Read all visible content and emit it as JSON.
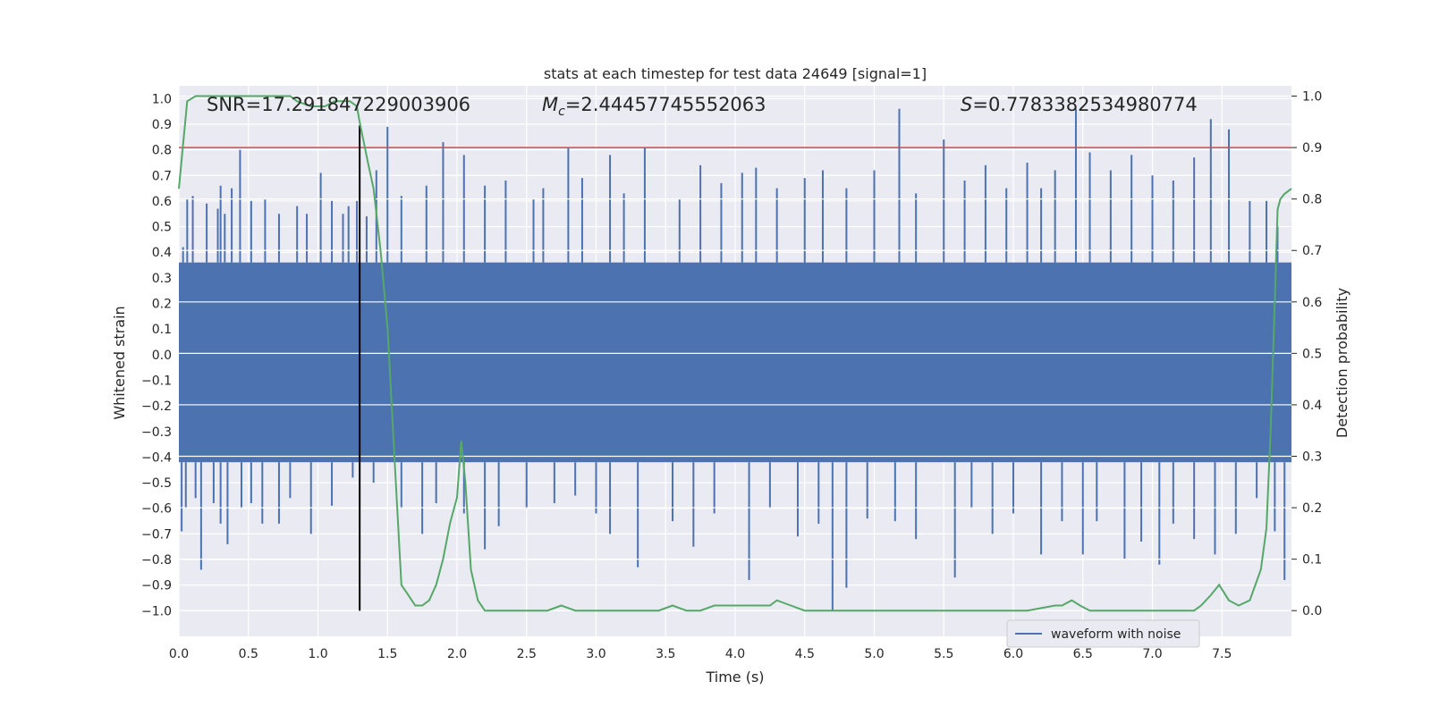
{
  "chart_data": {
    "type": "line",
    "title": "stats at each timestep for test data 24649 [signal=1]",
    "xlabel": "Time (s)",
    "ylabel_left": "Whitened strain",
    "ylabel_right": "Detection probability",
    "xlim": [
      0,
      8
    ],
    "ylim_left": [
      -1.1,
      1.05
    ],
    "ylim_right": [
      -0.05,
      1.02
    ],
    "x_ticks": [
      "0.0",
      "0.5",
      "1.0",
      "1.5",
      "2.0",
      "2.5",
      "3.0",
      "3.5",
      "4.0",
      "4.5",
      "5.0",
      "5.5",
      "6.0",
      "6.5",
      "7.0",
      "7.5"
    ],
    "y_ticks_left": [
      "1.0",
      "0.9",
      "0.8",
      "0.7",
      "0.6",
      "0.5",
      "0.4",
      "0.3",
      "0.2",
      "0.1",
      "0.0",
      "-0.1",
      "-0.2",
      "-0.3",
      "-0.4",
      "-0.5",
      "-0.6",
      "-0.7",
      "-0.8",
      "-0.9",
      "-1.0"
    ],
    "y_ticks_right": [
      "1.0",
      "0.9",
      "0.8",
      "0.7",
      "0.6",
      "0.5",
      "0.4",
      "0.3",
      "0.2",
      "0.1",
      "0.0"
    ],
    "annotations": {
      "snr": "SNR=17.291847229003906",
      "mc_prefix": "M",
      "mc_sub": "c",
      "mc_value": "=2.44457745552063",
      "s_prefix": "S",
      "s_value": "=0.7783382534980774"
    },
    "legend": {
      "label": "waveform with noise",
      "position": "lower-right"
    },
    "colors": {
      "waveform": "#4c72b0",
      "probability": "#55a868",
      "threshold": "#c44e52",
      "marker": "#000000",
      "axes_bg": "#eaeaf2"
    },
    "threshold_probability": 0.9,
    "marker_time": 1.3,
    "waveform_series": {
      "name": "waveform with noise",
      "envelope_top": 0.36,
      "envelope_bottom": -0.42,
      "spikes_positive": [
        [
          0.03,
          0.42
        ],
        [
          0.06,
          0.61
        ],
        [
          0.1,
          0.62
        ],
        [
          0.2,
          0.59
        ],
        [
          0.28,
          0.57
        ],
        [
          0.3,
          0.66
        ],
        [
          0.33,
          0.55
        ],
        [
          0.38,
          0.65
        ],
        [
          0.44,
          0.8
        ],
        [
          0.52,
          0.6
        ],
        [
          0.62,
          0.61
        ],
        [
          0.72,
          0.55
        ],
        [
          0.85,
          0.58
        ],
        [
          0.92,
          0.55
        ],
        [
          1.02,
          0.71
        ],
        [
          1.1,
          0.6
        ],
        [
          1.18,
          0.55
        ],
        [
          1.22,
          0.58
        ],
        [
          1.28,
          0.6
        ],
        [
          1.35,
          0.54
        ],
        [
          1.42,
          0.72
        ],
        [
          1.5,
          0.89
        ],
        [
          1.6,
          0.62
        ],
        [
          1.78,
          0.66
        ],
        [
          1.9,
          0.83
        ],
        [
          2.05,
          0.78
        ],
        [
          2.2,
          0.66
        ],
        [
          2.35,
          0.68
        ],
        [
          2.55,
          0.61
        ],
        [
          2.62,
          0.65
        ],
        [
          2.8,
          0.81
        ],
        [
          2.9,
          0.69
        ],
        [
          3.1,
          0.78
        ],
        [
          3.2,
          0.63
        ],
        [
          3.35,
          0.81
        ],
        [
          3.6,
          0.61
        ],
        [
          3.75,
          0.74
        ],
        [
          3.9,
          0.67
        ],
        [
          4.05,
          0.71
        ],
        [
          4.15,
          0.73
        ],
        [
          4.3,
          0.65
        ],
        [
          4.5,
          0.69
        ],
        [
          4.63,
          0.72
        ],
        [
          4.8,
          0.65
        ],
        [
          5.0,
          0.72
        ],
        [
          5.18,
          0.96
        ],
        [
          5.3,
          0.63
        ],
        [
          5.5,
          0.84
        ],
        [
          5.65,
          0.68
        ],
        [
          5.8,
          0.74
        ],
        [
          5.95,
          0.65
        ],
        [
          6.1,
          0.75
        ],
        [
          6.2,
          0.65
        ],
        [
          6.3,
          0.72
        ],
        [
          6.45,
          0.96
        ],
        [
          6.55,
          0.79
        ],
        [
          6.7,
          0.72
        ],
        [
          6.85,
          0.78
        ],
        [
          7.0,
          0.7
        ],
        [
          7.15,
          0.68
        ],
        [
          7.3,
          0.77
        ],
        [
          7.42,
          0.92
        ],
        [
          7.55,
          0.88
        ],
        [
          7.7,
          0.6
        ],
        [
          7.82,
          0.6
        ],
        [
          7.9,
          0.5
        ]
      ],
      "spikes_negative": [
        [
          0.02,
          -0.69
        ],
        [
          0.05,
          -0.6
        ],
        [
          0.12,
          -0.56
        ],
        [
          0.16,
          -0.84
        ],
        [
          0.25,
          -0.58
        ],
        [
          0.3,
          -0.66
        ],
        [
          0.35,
          -0.74
        ],
        [
          0.45,
          -0.6
        ],
        [
          0.52,
          -0.58
        ],
        [
          0.6,
          -0.66
        ],
        [
          0.72,
          -0.66
        ],
        [
          0.8,
          -0.56
        ],
        [
          0.95,
          -0.7
        ],
        [
          1.1,
          -0.59
        ],
        [
          1.25,
          -0.48
        ],
        [
          1.4,
          -0.5
        ],
        [
          1.6,
          -0.6
        ],
        [
          1.75,
          -0.7
        ],
        [
          1.85,
          -0.58
        ],
        [
          2.05,
          -0.62
        ],
        [
          2.2,
          -0.76
        ],
        [
          2.3,
          -0.67
        ],
        [
          2.5,
          -0.6
        ],
        [
          2.7,
          -0.58
        ],
        [
          2.85,
          -0.55
        ],
        [
          3.0,
          -0.62
        ],
        [
          3.1,
          -0.7
        ],
        [
          3.3,
          -0.83
        ],
        [
          3.55,
          -0.65
        ],
        [
          3.7,
          -0.75
        ],
        [
          3.85,
          -0.62
        ],
        [
          4.1,
          -0.88
        ],
        [
          4.25,
          -0.6
        ],
        [
          4.45,
          -0.71
        ],
        [
          4.6,
          -0.66
        ],
        [
          4.7,
          -1.0
        ],
        [
          4.8,
          -0.91
        ],
        [
          4.95,
          -0.64
        ],
        [
          5.15,
          -0.65
        ],
        [
          5.3,
          -0.72
        ],
        [
          5.58,
          -0.87
        ],
        [
          5.7,
          -0.6
        ],
        [
          5.85,
          -0.7
        ],
        [
          6.0,
          -0.62
        ],
        [
          6.2,
          -0.78
        ],
        [
          6.35,
          -0.65
        ],
        [
          6.5,
          -0.78
        ],
        [
          6.6,
          -0.65
        ],
        [
          6.8,
          -0.8
        ],
        [
          6.92,
          -0.73
        ],
        [
          7.05,
          -0.82
        ],
        [
          7.15,
          -0.66
        ],
        [
          7.3,
          -0.72
        ],
        [
          7.45,
          -0.78
        ],
        [
          7.6,
          -0.7
        ],
        [
          7.75,
          -0.56
        ],
        [
          7.88,
          -0.69
        ],
        [
          7.95,
          -0.88
        ]
      ]
    },
    "probability_series": {
      "name": "detection probability",
      "x": [
        0.0,
        0.06,
        0.12,
        0.2,
        0.3,
        0.5,
        0.6,
        0.7,
        0.8,
        0.85,
        0.95,
        1.05,
        1.12,
        1.18,
        1.23,
        1.28,
        1.3,
        1.33,
        1.36,
        1.4,
        1.45,
        1.5,
        1.55,
        1.6,
        1.65,
        1.7,
        1.75,
        1.8,
        1.85,
        1.9,
        1.95,
        2.0,
        2.03,
        2.06,
        2.1,
        2.15,
        2.2,
        2.25,
        2.35,
        2.5,
        2.65,
        2.75,
        2.85,
        3.0,
        3.15,
        3.3,
        3.45,
        3.55,
        3.65,
        3.75,
        3.85,
        3.95,
        4.05,
        4.15,
        4.25,
        4.3,
        4.4,
        4.5,
        4.7,
        4.9,
        5.1,
        5.3,
        5.5,
        5.7,
        5.9,
        6.1,
        6.3,
        6.35,
        6.42,
        6.48,
        6.55,
        6.65,
        6.8,
        7.0,
        7.15,
        7.3,
        7.35,
        7.42,
        7.48,
        7.55,
        7.62,
        7.7,
        7.78,
        7.82,
        7.85,
        7.88,
        7.9,
        7.92,
        7.95,
        8.0
      ],
      "values": [
        0.82,
        0.99,
        1.0,
        1.0,
        1.0,
        1.0,
        1.0,
        1.0,
        1.0,
        0.99,
        0.98,
        0.98,
        0.99,
        0.99,
        0.99,
        0.98,
        0.95,
        0.91,
        0.87,
        0.82,
        0.7,
        0.55,
        0.3,
        0.05,
        0.03,
        0.01,
        0.01,
        0.02,
        0.05,
        0.1,
        0.17,
        0.22,
        0.33,
        0.25,
        0.08,
        0.02,
        0.0,
        0.0,
        0.0,
        0.0,
        0.0,
        0.01,
        0.0,
        0.0,
        0.0,
        0.0,
        0.0,
        0.01,
        0.0,
        0.0,
        0.01,
        0.01,
        0.01,
        0.01,
        0.01,
        0.02,
        0.01,
        0.0,
        0.0,
        0.0,
        0.0,
        0.0,
        0.0,
        0.0,
        0.0,
        0.0,
        0.01,
        0.01,
        0.02,
        0.01,
        0.0,
        0.0,
        0.0,
        0.0,
        0.0,
        0.0,
        0.01,
        0.03,
        0.05,
        0.02,
        0.01,
        0.02,
        0.08,
        0.16,
        0.35,
        0.6,
        0.78,
        0.8,
        0.81,
        0.82
      ]
    }
  }
}
